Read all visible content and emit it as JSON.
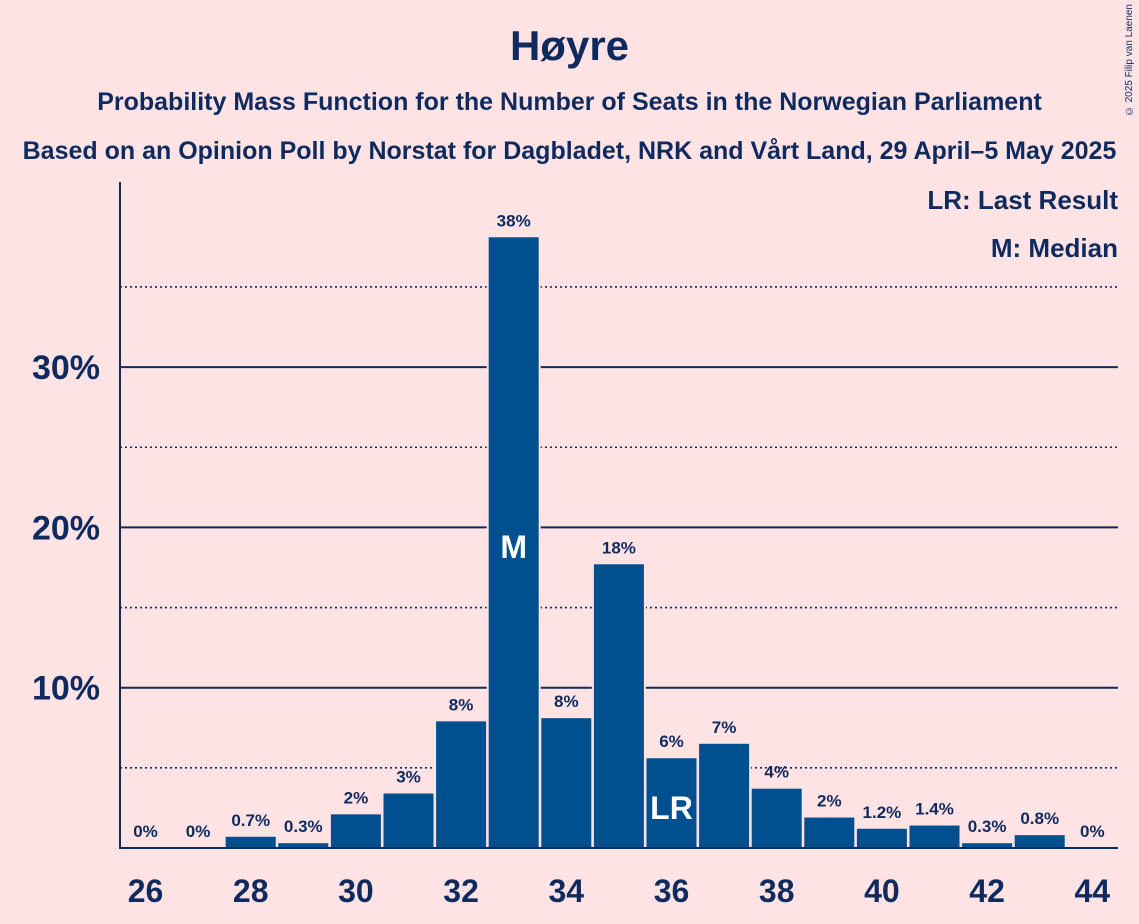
{
  "header": {
    "title": "Høyre",
    "subtitle": "Probability Mass Function for the Number of Seats in the Norwegian Parliament",
    "subtitle2": "Based on an Opinion Poll by Norstat for Dagbladet, NRK and Vårt Land, 29 April–5 May 2025",
    "copyright": "© 2025 Filip van Laenen"
  },
  "legend": {
    "lr": "LR: Last Result",
    "m": "M: Median"
  },
  "colors": {
    "background": "#fde3e4",
    "bar": "#00508f",
    "text": "#0f2a5e"
  },
  "chart_data": {
    "type": "bar",
    "categories": [
      26,
      27,
      28,
      29,
      30,
      31,
      32,
      33,
      34,
      35,
      36,
      37,
      38,
      39,
      40,
      41,
      42,
      43,
      44
    ],
    "values": [
      0,
      0,
      0.7,
      0.3,
      2.1,
      3.4,
      7.9,
      38.1,
      8.1,
      17.7,
      5.6,
      6.5,
      3.7,
      1.9,
      1.2,
      1.4,
      0.3,
      0.8,
      0
    ],
    "labels": [
      "0%",
      "0%",
      "0.7%",
      "0.3%",
      "2%",
      "3%",
      "8%",
      "38%",
      "8%",
      "18%",
      "6%",
      "7%",
      "4%",
      "2%",
      "1.2%",
      "1.4%",
      "0.3%",
      "0.8%",
      "0%"
    ],
    "xticks": [
      26,
      28,
      30,
      32,
      34,
      36,
      38,
      40,
      42,
      44
    ],
    "yticks": [
      {
        "value": 10,
        "label": "10%"
      },
      {
        "value": 20,
        "label": "20%"
      },
      {
        "value": 30,
        "label": "30%"
      }
    ],
    "dotted_gridlines": [
      5,
      15,
      25,
      35
    ],
    "ylim": [
      0,
      41.5
    ],
    "median": {
      "seat": 33,
      "label": "M"
    },
    "last_result": {
      "seat": 36,
      "label": "LR"
    },
    "grid": true,
    "legend_position": "top-right"
  }
}
